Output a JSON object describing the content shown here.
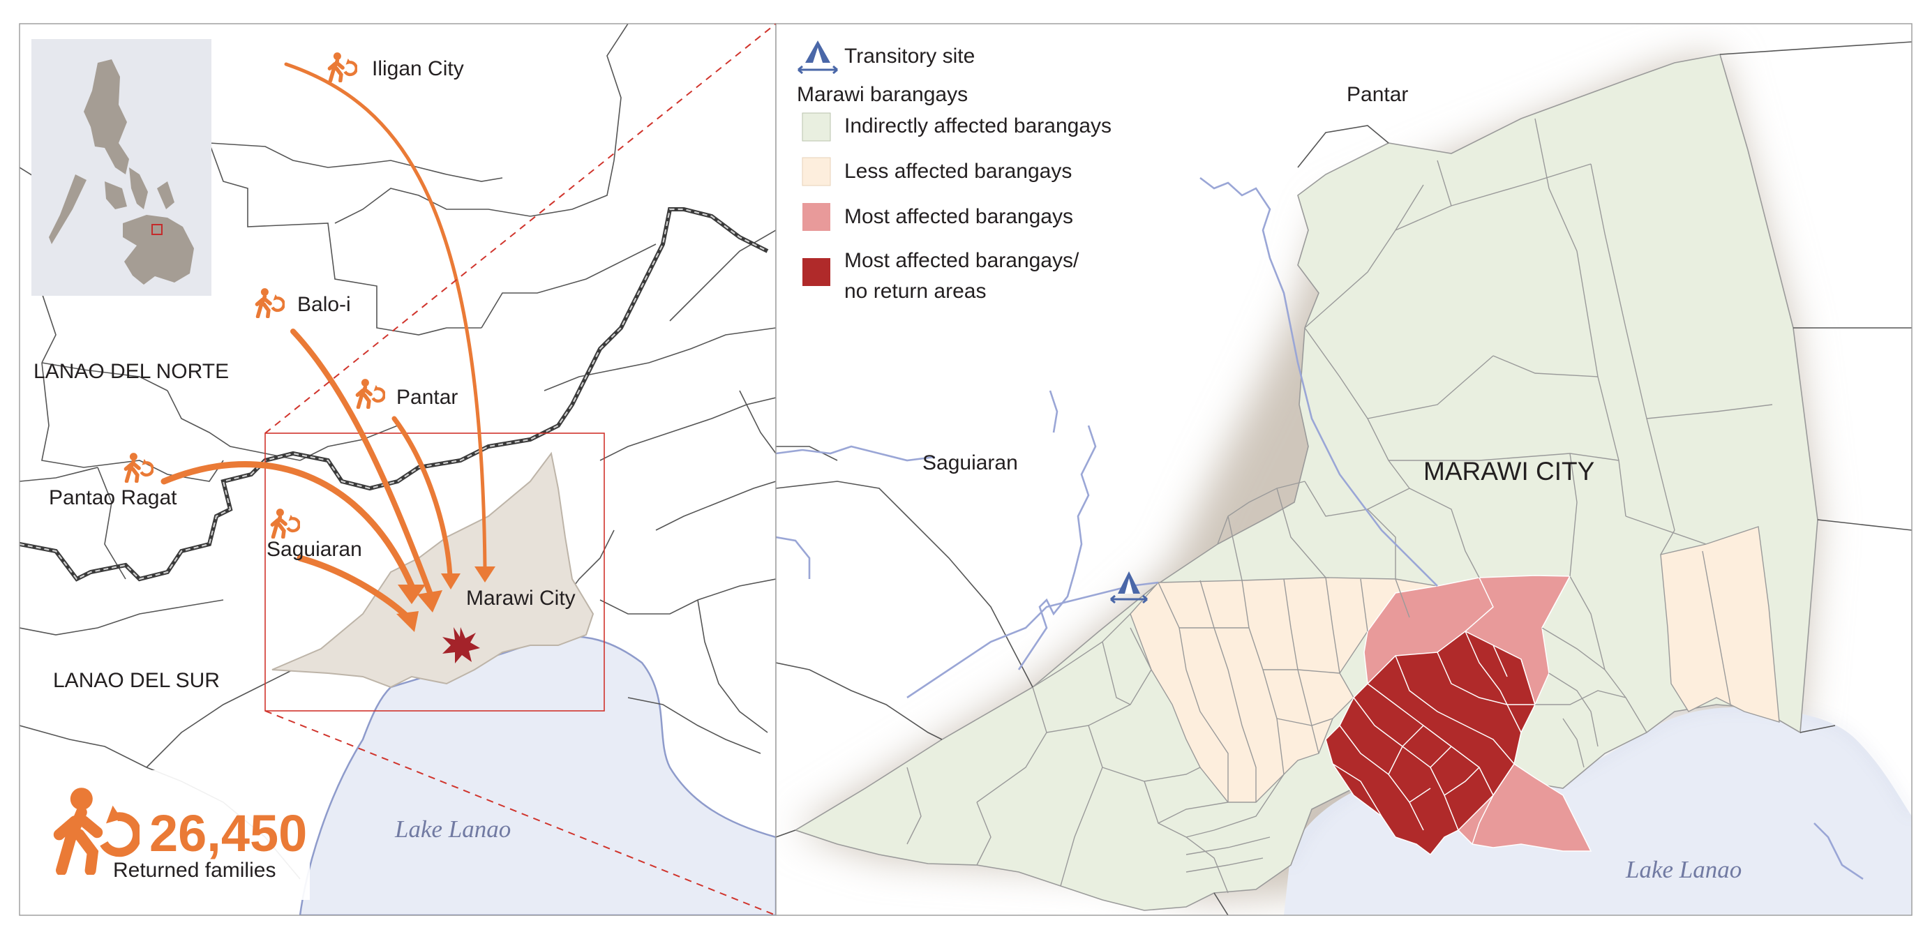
{
  "inset_map": {
    "labels": {
      "iligan": "Iligan City",
      "baloi": "Balo-i",
      "pantar": "Pantar",
      "pantao_ragat": "Pantao Ragat",
      "saguiaran": "Saguiaran",
      "marawi": "Marawi City",
      "lanao_norte": "LANAO DEL NORTE",
      "lanao_sur": "LANAO DEL SUR",
      "lake": "Lake Lanao"
    },
    "returned": {
      "count": "26,450",
      "label": "Returned families"
    },
    "icons": {
      "returnee": "person-return-icon",
      "incident": "explosion-star-icon"
    }
  },
  "main_map": {
    "legend": {
      "transitory_site": "Transitory site",
      "group_title": "Marawi barangays",
      "items": [
        {
          "label": "Indirectly affected barangays",
          "color": "#e9efe0"
        },
        {
          "label": "Less affected barangays",
          "color": "#fdeedd"
        },
        {
          "label": "Most affected barangays",
          "color": "#e89a9a"
        },
        {
          "label_line1": "Most affected barangays/",
          "label_line2": "no return areas",
          "color": "#b02a2a"
        }
      ]
    },
    "labels": {
      "pantar": "Pantar",
      "saguiaran": "Saguiaran",
      "marawi": "MARAWI CITY",
      "lake": "Lake Lanao"
    },
    "icons": {
      "transitory": "tent-icon"
    }
  },
  "colors": {
    "arrow": "#ea7a36",
    "lake": "#e8ecf6",
    "river": "#9aa6d6",
    "city_fill_inset": "#e7e1d9",
    "tent": "#4a67a8",
    "incident": "#a4232a"
  }
}
